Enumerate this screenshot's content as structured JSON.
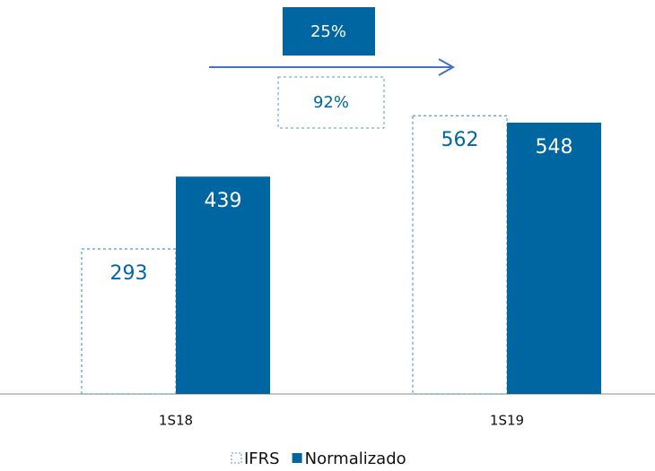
{
  "chart_data": {
    "type": "bar",
    "categories": [
      "1S18",
      "1S19"
    ],
    "series": [
      {
        "name": "IFRS",
        "color": "#5a9bbf",
        "style": "dashed",
        "label_color": "#0066a1",
        "values": [
          293,
          562
        ]
      },
      {
        "name": "Normalizado",
        "color": "#0066a1",
        "style": "solid",
        "label_color": "#ffffff",
        "values": [
          439,
          548
        ]
      }
    ],
    "ylim": [
      0,
      800
    ],
    "annotations": [
      {
        "text": "25%",
        "series": "Normalizado"
      },
      {
        "text": "92%",
        "series": "IFRS"
      }
    ],
    "legend": "bottom"
  }
}
